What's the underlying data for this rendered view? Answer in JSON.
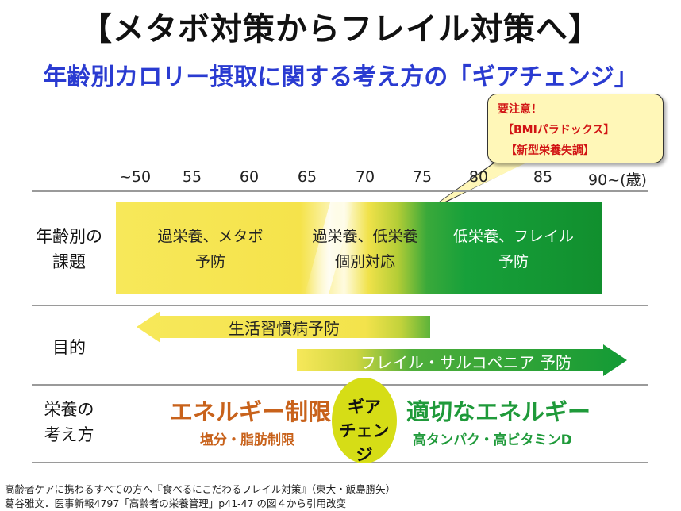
{
  "title": "【メタボ対策からフレイル対策へ】",
  "subtitle": "年齢別カロリー摂取に関する考え方の「ギアチェンジ」",
  "callout": {
    "line1": "要注意！",
    "line2": "【BMIパラドックス】",
    "line3": "【新型栄養失調】"
  },
  "age_axis": {
    "ticks": [
      "~50",
      "55",
      "60",
      "65",
      "70",
      "75",
      "80",
      "85",
      "90~(歳)"
    ]
  },
  "rows": {
    "issues": {
      "label_line1": "年齢別の",
      "label_line2": "課題",
      "band1_line1": "過栄養、メタボ",
      "band1_line2": "予防",
      "band2_line1": "過栄養、低栄養",
      "band2_line2": "個別対応",
      "band3_line1": "低栄養、フレイル",
      "band3_line2": "予防"
    },
    "purpose": {
      "label": "目的",
      "arrow1": "生活習慣病予防",
      "arrow2": "フレイル・サルコペニア 予防"
    },
    "nutrition": {
      "label_line1": "栄養の",
      "label_line2": "考え方",
      "left_main": "エネルギー制限",
      "left_sub": "塩分・脂肪制限",
      "gear_line1": "ギア",
      "gear_line2": "チェンジ",
      "right_main": "適切なエネルギー",
      "right_sub": "高タンパク・高ビタミンD"
    }
  },
  "source": {
    "line1": "高齢者ケアに携わるすべての方へ『食べるにこだわるフレイル対策』（東大・飯島勝矢）",
    "line2": "葛谷雅文．医事新報4797「高齢者の栄養管理」p41-47 の図４から引用改変"
  },
  "colors": {
    "yellow": "#f3e24a",
    "green": "#139a34",
    "title_blue": "#2a3bd1",
    "orange_text": "#c8621b",
    "green_text": "#1f9a3a",
    "alert_red": "#d11414"
  }
}
